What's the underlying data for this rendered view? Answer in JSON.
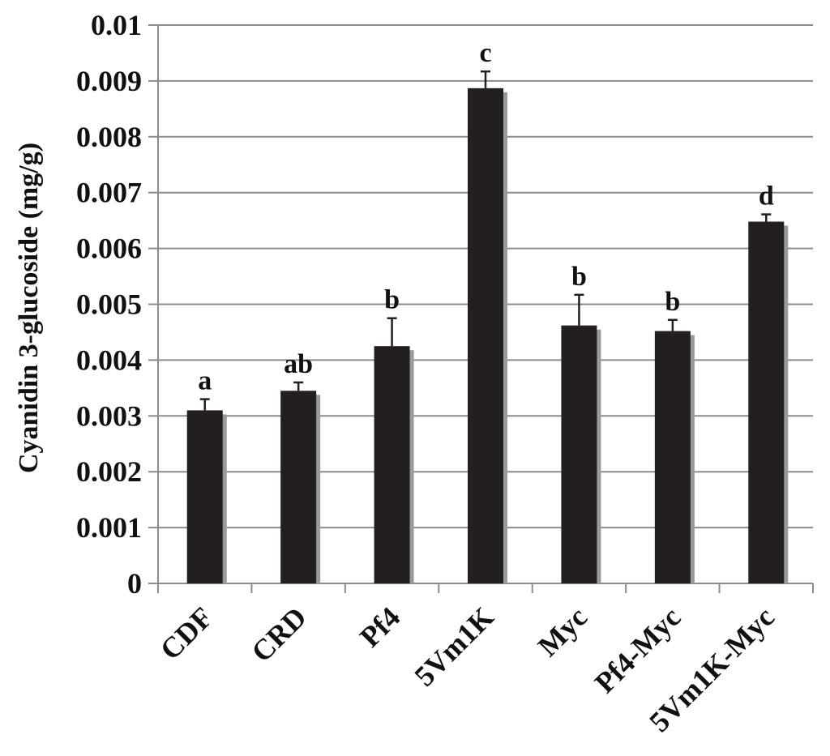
{
  "chart_data": {
    "type": "bar",
    "title": "",
    "xlabel": "",
    "ylabel": "Cyanidin 3-glucoside (mg/g)",
    "ylim": [
      0,
      0.01
    ],
    "yticks": [
      "0",
      "0.001",
      "0.002",
      "0.003",
      "0.004",
      "0.005",
      "0.006",
      "0.007",
      "0.008",
      "0.009",
      "0.01"
    ],
    "grid": true,
    "legend": "none",
    "categories": [
      "CDF",
      "CRD",
      "Pf4",
      "5Vm1K",
      "Myc",
      "Pf4-Myc",
      "5Vm1K-Myc"
    ],
    "values": [
      0.0031,
      0.00345,
      0.00425,
      0.00887,
      0.00462,
      0.00452,
      0.00648
    ],
    "errors": [
      0.0002,
      0.00015,
      0.0005,
      0.0003,
      0.00055,
      0.0002,
      0.00013
    ],
    "significance": [
      "a",
      "ab",
      "b",
      "c",
      "b",
      "b",
      "d"
    ],
    "colors": {
      "bar": "#231f20",
      "shadow": "#9a9a9a",
      "grid": "#8c8c8c",
      "axis": "#8c8c8c",
      "text": "#111111"
    }
  }
}
